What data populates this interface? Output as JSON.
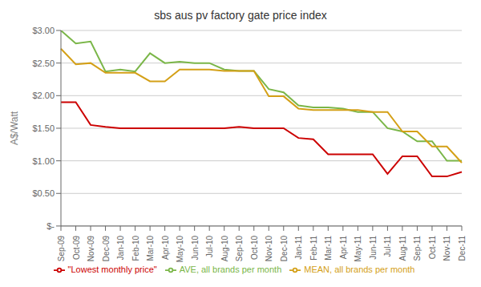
{
  "chart_data": {
    "type": "line",
    "title": "sbs aus pv factory gate price index",
    "y_label": "A$/Watt",
    "categories": [
      "Sep-09",
      "Oct-09",
      "Nov-09",
      "Dec-09",
      "Jan-10",
      "Feb-10",
      "Mar-10",
      "Apr-10",
      "May-10",
      "Jun-10",
      "Jul-10",
      "Aug-10",
      "Sep-10",
      "Oct-10",
      "Nov-10",
      "Dec-10",
      "Jan-11",
      "Feb-11",
      "Mar-11",
      "Apr-11",
      "May-11",
      "Jun-11",
      "Jul-11",
      "Aug-11",
      "Sep-11",
      "Oct-11",
      "Nov-11",
      "Dec-11"
    ],
    "series": [
      {
        "name": "\"Lowest monthly price\"",
        "color": "#cc0000",
        "values": [
          1.9,
          1.9,
          1.55,
          1.52,
          1.5,
          1.5,
          1.5,
          1.5,
          1.5,
          1.5,
          1.5,
          1.5,
          1.52,
          1.5,
          1.5,
          1.5,
          1.35,
          1.33,
          1.1,
          1.1,
          1.1,
          1.1,
          0.8,
          1.07,
          1.07,
          0.76,
          0.76,
          0.83
        ]
      },
      {
        "name": "AVE, all brands per month",
        "color": "#7ab648",
        "values": [
          3.0,
          2.8,
          2.83,
          2.37,
          2.4,
          2.37,
          2.65,
          2.5,
          2.52,
          2.5,
          2.5,
          2.4,
          2.38,
          2.38,
          2.1,
          2.05,
          1.85,
          1.82,
          1.82,
          1.8,
          1.75,
          1.75,
          1.5,
          1.45,
          1.3,
          1.3,
          1.0,
          1.0
        ]
      },
      {
        "name": "MEAN, all brands per month",
        "color": "#d4a017",
        "values": [
          2.72,
          2.48,
          2.5,
          2.35,
          2.35,
          2.35,
          2.22,
          2.22,
          2.4,
          2.4,
          2.4,
          2.38,
          2.38,
          2.38,
          1.99,
          1.99,
          1.8,
          1.78,
          1.78,
          1.78,
          1.78,
          1.75,
          1.75,
          1.45,
          1.45,
          1.22,
          1.22,
          0.97
        ]
      }
    ],
    "ylim": [
      0,
      3.0
    ],
    "yticks": [
      {
        "value": 0,
        "label": "$-"
      },
      {
        "value": 0.5,
        "label": "$0.50"
      },
      {
        "value": 1.0,
        "label": "$1.00"
      },
      {
        "value": 1.5,
        "label": "$1.50"
      },
      {
        "value": 2.0,
        "label": "$2.00"
      },
      {
        "value": 2.5,
        "label": "$2.50"
      },
      {
        "value": 3.0,
        "label": "$3.00"
      }
    ],
    "grid": true,
    "legend": "bottom"
  }
}
